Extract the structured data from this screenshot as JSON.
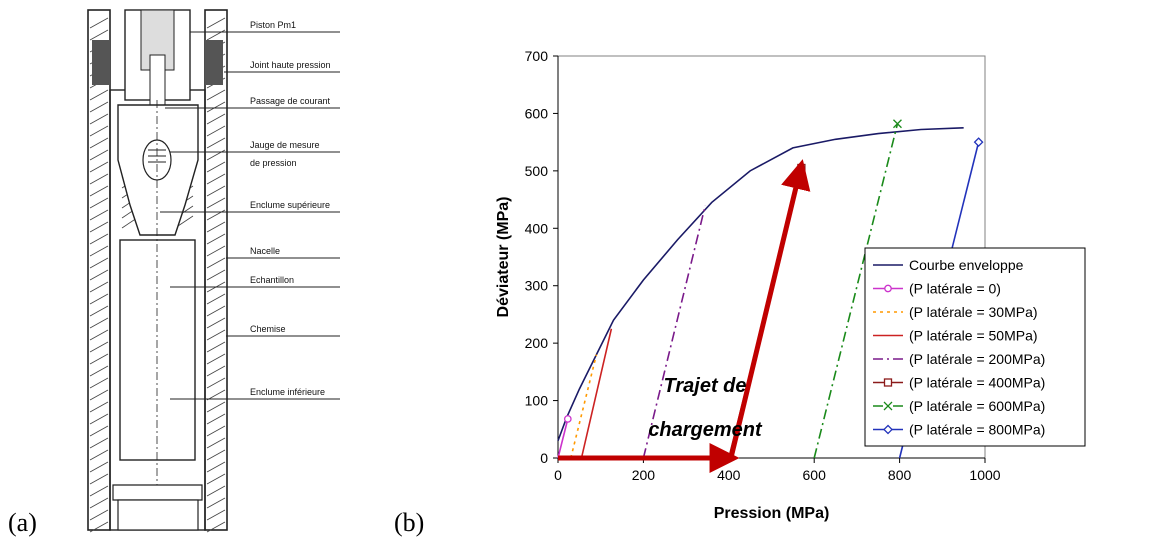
{
  "panel_a": {
    "label": "(a)",
    "callouts": [
      "Piston Pm1",
      "Joint haute pression",
      "Passage de courant",
      "Jauge de mesure",
      "de pression",
      "Enclume supérieure",
      "Nacelle",
      "Echantillon",
      "Chemise",
      "Enclume inférieure"
    ]
  },
  "panel_b": {
    "label": "(b)",
    "annotation_line1": "Trajet de",
    "annotation_line2": "chargement"
  },
  "colors": {
    "envelope": "#1a1a66",
    "p0": "#cc33cc",
    "p30": "#ff9900",
    "p50": "#cc2222",
    "p200": "#7a1a8a",
    "p400": "#8b1a1a",
    "p600": "#1a8a1a",
    "p800": "#2233bb",
    "arrow": "#c00000"
  },
  "chart_data": {
    "type": "line",
    "xlabel": "Pression (MPa)",
    "ylabel": "Déviateur (MPa)",
    "xlim": [
      0,
      1000
    ],
    "ylim": [
      0,
      700
    ],
    "xticks": [
      0,
      200,
      400,
      600,
      800,
      1000
    ],
    "yticks": [
      0,
      100,
      200,
      300,
      400,
      500,
      600,
      700
    ],
    "grid": false,
    "legend_position": "right",
    "series": [
      {
        "name": "Courbe enveloppe",
        "style": "solid",
        "marker": "none",
        "colorKey": "envelope",
        "x": [
          0,
          20,
          50,
          90,
          130,
          200,
          280,
          360,
          450,
          550,
          650,
          750,
          850,
          950
        ],
        "y": [
          30,
          70,
          120,
          180,
          240,
          310,
          380,
          445,
          500,
          540,
          555,
          565,
          572,
          575
        ]
      },
      {
        "name": "(P latérale = 0)",
        "style": "solid",
        "marker": "circle",
        "colorKey": "p0",
        "x": [
          0,
          23
        ],
        "y": [
          0,
          68
        ]
      },
      {
        "name": "(P latérale = 30MPa)",
        "style": "dotted",
        "marker": "none",
        "colorKey": "p30",
        "x": [
          30,
          90
        ],
        "y": [
          0,
          180
        ]
      },
      {
        "name": "(P latérale = 50MPa)",
        "style": "solid",
        "marker": "none",
        "colorKey": "p50",
        "x": [
          55,
          125
        ],
        "y": [
          0,
          225
        ]
      },
      {
        "name": "(P latérale = 200MPa)",
        "style": "dashdot",
        "marker": "none",
        "colorKey": "p200",
        "x": [
          200,
          345
        ],
        "y": [
          0,
          440
        ]
      },
      {
        "name": "(P latérale = 400MPa)",
        "style": "solid",
        "marker": "square",
        "colorKey": "p400",
        "x": [
          400,
          570
        ],
        "y": [
          0,
          505
        ]
      },
      {
        "name": "(P latérale = 600MPa)",
        "style": "dashdot",
        "marker": "x",
        "colorKey": "p600",
        "x": [
          600,
          795
        ],
        "y": [
          0,
          582
        ]
      },
      {
        "name": "(P latérale = 800MPa)",
        "style": "solid",
        "marker": "diamond",
        "colorKey": "p800",
        "x": [
          800,
          985
        ],
        "y": [
          0,
          550
        ]
      }
    ],
    "loading_path_arrows": [
      {
        "x": [
          0,
          390
        ],
        "y": [
          0,
          0
        ]
      },
      {
        "x": [
          405,
          565
        ],
        "y": [
          0,
          495
        ]
      }
    ]
  }
}
